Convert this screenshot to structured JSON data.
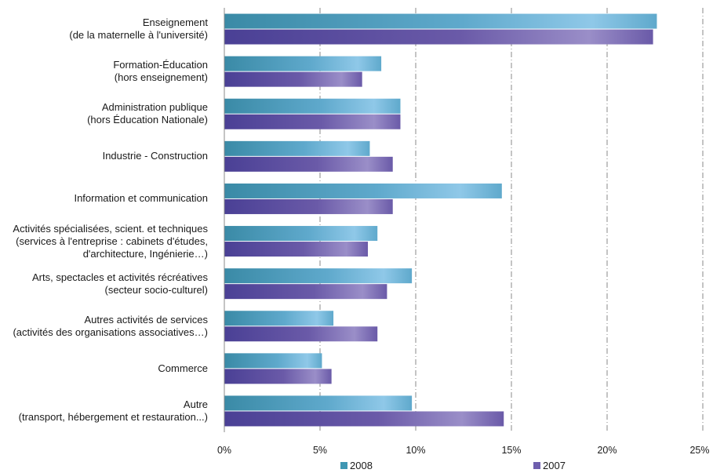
{
  "chart_data": {
    "type": "bar",
    "orientation": "horizontal",
    "categories": [
      [
        "Enseignement",
        "(de la maternelle à l'université)"
      ],
      [
        "Formation-Éducation",
        "(hors enseignement)"
      ],
      [
        "Administration publique",
        "(hors Éducation Nationale)"
      ],
      [
        "Industrie - Construction"
      ],
      [
        "Information et communication"
      ],
      [
        "Activités spécialisées, scient. et techniques",
        "(services à l'entreprise : cabinets d'études,",
        "d'architecture, Ingénierie…)"
      ],
      [
        "Arts, spectacles et activités récréatives",
        "(secteur socio-culturel)"
      ],
      [
        "Autres activités de services",
        "(activités des organisations associatives…)"
      ],
      [
        "Commerce"
      ],
      [
        "Autre",
        "(transport, hébergement et restauration...)"
      ]
    ],
    "series": [
      {
        "name": "2008",
        "color": "#3f97b3",
        "values": [
          22.6,
          8.2,
          9.2,
          7.6,
          14.5,
          8.0,
          9.8,
          5.7,
          5.1,
          9.8
        ]
      },
      {
        "name": "2007",
        "color": "#6f5fae",
        "values": [
          22.4,
          7.2,
          9.2,
          8.8,
          8.8,
          7.5,
          8.5,
          8.0,
          5.6,
          14.6
        ]
      }
    ],
    "xlim": [
      0,
      25
    ],
    "ticks": [
      "0%",
      "5%",
      "10%",
      "15%",
      "20%",
      "25%"
    ],
    "tick_values": [
      0,
      5,
      10,
      15,
      20,
      25
    ],
    "grid": "vertical dash-dot",
    "legend_position": "bottom"
  }
}
